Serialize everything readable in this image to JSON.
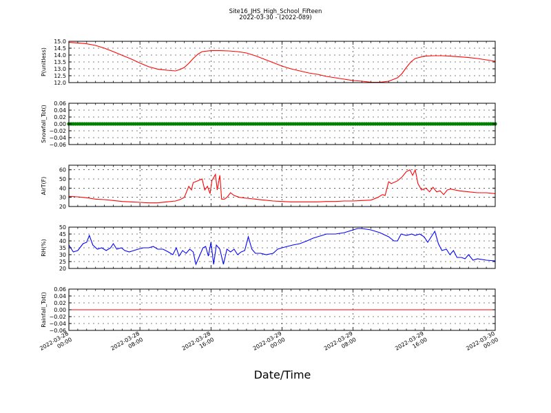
{
  "title": "Site16_JHS_High_School_Fifteen",
  "subtitle": "2022-03-30 - (2022-089)",
  "xlabel": "Date/Time",
  "x_ticks": [
    "2022-03-28\n00:00",
    "2022-03-28\n08:00",
    "2022-03-28\n16:00",
    "2022-03-29\n00:00",
    "2022-03-29\n08:00",
    "2022-03-29\n16:00",
    "2022-03-30\n00:00"
  ],
  "chart_data": [
    {
      "type": "line",
      "ylabel": "P(unitless)",
      "ylim": [
        12.0,
        15.0
      ],
      "yticks": [
        "12.0",
        "12.5",
        "13.0",
        "13.5",
        "14.0",
        "14.5",
        "15.0"
      ],
      "ytick_values": [
        12.0,
        12.5,
        13.0,
        13.5,
        14.0,
        14.5,
        15.0
      ],
      "xlim_hours": [
        0,
        48
      ],
      "grid": true,
      "series": [
        {
          "color": "#ff0000",
          "points": [
            [
              0,
              14.92
            ],
            [
              1,
              14.88
            ],
            [
              2,
              14.82
            ],
            [
              3,
              14.7
            ],
            [
              4,
              14.5
            ],
            [
              5,
              14.25
            ],
            [
              6,
              13.98
            ],
            [
              7,
              13.72
            ],
            [
              8,
              13.42
            ],
            [
              9,
              13.15
            ],
            [
              10,
              12.98
            ],
            [
              11,
              12.9
            ],
            [
              12,
              12.85
            ],
            [
              12.5,
              12.95
            ],
            [
              13,
              13.1
            ],
            [
              13.5,
              13.4
            ],
            [
              14,
              13.75
            ],
            [
              14.5,
              14.05
            ],
            [
              15,
              14.25
            ],
            [
              16,
              14.32
            ],
            [
              17,
              14.32
            ],
            [
              18,
              14.3
            ],
            [
              19,
              14.25
            ],
            [
              20,
              14.15
            ],
            [
              21,
              13.95
            ],
            [
              22,
              13.7
            ],
            [
              23,
              13.45
            ],
            [
              24,
              13.2
            ],
            [
              25,
              13.0
            ],
            [
              26,
              12.85
            ],
            [
              27,
              12.7
            ],
            [
              28,
              12.6
            ],
            [
              29,
              12.45
            ],
            [
              30,
              12.35
            ],
            [
              31,
              12.25
            ],
            [
              32,
              12.15
            ],
            [
              33,
              12.1
            ],
            [
              34,
              12.03
            ],
            [
              35,
              12.02
            ],
            [
              36,
              12.1
            ],
            [
              37,
              12.35
            ],
            [
              37.5,
              12.65
            ],
            [
              38,
              13.1
            ],
            [
              38.5,
              13.5
            ],
            [
              39,
              13.75
            ],
            [
              40,
              13.92
            ],
            [
              41,
              13.95
            ],
            [
              42,
              13.95
            ],
            [
              43,
              13.92
            ],
            [
              44,
              13.87
            ],
            [
              45,
              13.82
            ],
            [
              46,
              13.75
            ],
            [
              47,
              13.65
            ],
            [
              48,
              13.55
            ]
          ]
        }
      ]
    },
    {
      "type": "scatter",
      "ylabel": "Snowfall_Tot()",
      "ylim": [
        -0.06,
        0.06
      ],
      "yticks": [
        "−0.06",
        "−0.04",
        "−0.02",
        "0.00",
        "0.02",
        "0.04",
        "0.06"
      ],
      "ytick_values": [
        -0.06,
        -0.04,
        -0.02,
        0.0,
        0.02,
        0.04,
        0.06
      ],
      "xlim_hours": [
        0,
        48
      ],
      "grid": true,
      "series": [
        {
          "color": "#008000",
          "marker": "dot",
          "constant": 0.0,
          "x_range": [
            0,
            48
          ]
        }
      ]
    },
    {
      "type": "line",
      "ylabel": "AirT(F)",
      "ylim": [
        20,
        65
      ],
      "yticks": [
        "20",
        "30",
        "40",
        "50",
        "60"
      ],
      "ytick_values": [
        20,
        30,
        40,
        50,
        60
      ],
      "xlim_hours": [
        0,
        48
      ],
      "grid": true,
      "series": [
        {
          "color": "#ff0000",
          "points": [
            [
              0,
              31
            ],
            [
              1,
              30.5
            ],
            [
              2,
              29.5
            ],
            [
              3,
              28
            ],
            [
              4,
              27.5
            ],
            [
              5,
              26.5
            ],
            [
              6,
              25.5
            ],
            [
              7,
              25
            ],
            [
              8,
              24.5
            ],
            [
              9,
              24
            ],
            [
              10,
              24
            ],
            [
              11,
              25
            ],
            [
              12,
              26
            ],
            [
              12.5,
              27.5
            ],
            [
              13,
              30
            ],
            [
              13.5,
              42
            ],
            [
              13.8,
              38
            ],
            [
              14,
              46
            ],
            [
              14.5,
              48
            ],
            [
              15,
              50
            ],
            [
              15.3,
              38
            ],
            [
              15.6,
              42
            ],
            [
              15.9,
              34
            ],
            [
              16.1,
              48
            ],
            [
              16.5,
              55
            ],
            [
              16.7,
              38
            ],
            [
              17,
              54
            ],
            [
              17.2,
              28
            ],
            [
              17.5,
              28
            ],
            [
              17.8,
              30
            ],
            [
              18.2,
              35
            ],
            [
              18.6,
              32
            ],
            [
              19.2,
              30
            ],
            [
              20,
              29
            ],
            [
              21,
              28
            ],
            [
              22,
              27
            ],
            [
              23,
              26
            ],
            [
              24,
              25.5
            ],
            [
              25,
              25
            ],
            [
              26,
              25
            ],
            [
              27,
              25
            ],
            [
              28,
              25
            ],
            [
              29,
              25.5
            ],
            [
              30,
              25.5
            ],
            [
              31,
              26
            ],
            [
              32,
              26
            ],
            [
              33,
              26.5
            ],
            [
              34,
              27
            ],
            [
              34.8,
              30
            ],
            [
              35.3,
              33
            ],
            [
              35.6,
              32
            ],
            [
              36,
              47
            ],
            [
              36.3,
              45
            ],
            [
              37,
              48
            ],
            [
              37.5,
              52
            ],
            [
              38,
              58
            ],
            [
              38.4,
              60
            ],
            [
              38.7,
              54
            ],
            [
              39,
              60
            ],
            [
              39.3,
              45
            ],
            [
              39.7,
              38
            ],
            [
              40.2,
              40
            ],
            [
              40.6,
              36
            ],
            [
              41,
              41
            ],
            [
              41.4,
              36
            ],
            [
              41.8,
              37
            ],
            [
              42.2,
              33
            ],
            [
              42.6,
              38
            ],
            [
              43,
              39
            ],
            [
              44,
              37
            ],
            [
              45,
              36
            ],
            [
              46,
              35
            ],
            [
              47,
              35
            ],
            [
              48,
              34
            ]
          ]
        }
      ]
    },
    {
      "type": "line",
      "ylabel": "RH(%)",
      "ylim": [
        20,
        50
      ],
      "yticks": [
        "20",
        "25",
        "30",
        "35",
        "40",
        "45",
        "50"
      ],
      "ytick_values": [
        20,
        25,
        30,
        35,
        40,
        45,
        50
      ],
      "xlim_hours": [
        0,
        48
      ],
      "grid": true,
      "series": [
        {
          "color": "#0000ff",
          "points": [
            [
              0,
              37
            ],
            [
              0.5,
              32
            ],
            [
              1,
              33
            ],
            [
              1.6,
              38
            ],
            [
              2,
              39
            ],
            [
              2.3,
              44
            ],
            [
              2.7,
              37
            ],
            [
              3.2,
              34
            ],
            [
              3.7,
              35
            ],
            [
              4.2,
              33
            ],
            [
              4.7,
              35
            ],
            [
              5,
              38
            ],
            [
              5.4,
              34
            ],
            [
              5.9,
              35
            ],
            [
              6.3,
              33
            ],
            [
              6.8,
              32
            ],
            [
              7.3,
              33
            ],
            [
              7.8,
              34
            ],
            [
              8.4,
              35
            ],
            [
              9,
              35
            ],
            [
              9.5,
              36
            ],
            [
              10,
              34
            ],
            [
              10.6,
              34
            ],
            [
              11.2,
              32
            ],
            [
              11.7,
              30
            ],
            [
              12.1,
              35
            ],
            [
              12.4,
              29
            ],
            [
              12.8,
              33
            ],
            [
              13.2,
              31
            ],
            [
              13.6,
              34
            ],
            [
              14,
              32
            ],
            [
              14.3,
              23
            ],
            [
              14.7,
              29
            ],
            [
              15.1,
              35
            ],
            [
              15.4,
              36
            ],
            [
              15.7,
              29
            ],
            [
              16,
              39
            ],
            [
              16.3,
              23
            ],
            [
              16.6,
              37
            ],
            [
              17,
              34
            ],
            [
              17.4,
              23
            ],
            [
              17.8,
              34
            ],
            [
              18.2,
              32
            ],
            [
              18.6,
              34
            ],
            [
              19,
              30
            ],
            [
              19.4,
              32
            ],
            [
              19.8,
              33
            ],
            [
              20.2,
              43
            ],
            [
              20.6,
              34
            ],
            [
              21,
              31
            ],
            [
              21.6,
              31
            ],
            [
              22.2,
              30
            ],
            [
              23,
              31
            ],
            [
              23.5,
              34
            ],
            [
              24,
              35
            ],
            [
              24.6,
              36
            ],
            [
              25.2,
              37
            ],
            [
              26,
              38
            ],
            [
              26.8,
              40
            ],
            [
              27.5,
              42
            ],
            [
              28,
              43
            ],
            [
              29,
              45
            ],
            [
              30,
              45
            ],
            [
              31,
              46
            ],
            [
              32,
              48
            ],
            [
              32.5,
              49
            ],
            [
              33,
              49
            ],
            [
              34,
              48
            ],
            [
              35,
              46
            ],
            [
              36,
              43
            ],
            [
              36.6,
              40
            ],
            [
              37,
              40
            ],
            [
              37.4,
              45
            ],
            [
              38,
              44
            ],
            [
              38.6,
              45
            ],
            [
              39,
              44
            ],
            [
              39.5,
              45
            ],
            [
              40,
              43
            ],
            [
              40.4,
              39
            ],
            [
              40.8,
              43
            ],
            [
              41.2,
              47
            ],
            [
              41.6,
              38
            ],
            [
              42,
              33
            ],
            [
              42.5,
              34
            ],
            [
              42.9,
              30
            ],
            [
              43.3,
              33
            ],
            [
              43.7,
              28
            ],
            [
              44.2,
              28
            ],
            [
              44.6,
              27
            ],
            [
              45,
              30
            ],
            [
              45.5,
              26
            ],
            [
              46,
              27
            ],
            [
              47,
              26
            ],
            [
              48,
              25.5
            ]
          ]
        }
      ]
    },
    {
      "type": "line",
      "ylabel": "Rainfall_Tot()",
      "ylim": [
        -0.06,
        0.06
      ],
      "yticks": [
        "−0.06",
        "−0.04",
        "−0.02",
        "0.00",
        "0.02",
        "0.04",
        "0.06"
      ],
      "ytick_values": [
        -0.06,
        -0.04,
        -0.02,
        0.0,
        0.02,
        0.04,
        0.06
      ],
      "xlim_hours": [
        0,
        48
      ],
      "grid": true,
      "series": [
        {
          "color": "#ff0000",
          "points": [
            [
              0,
              0
            ],
            [
              48,
              0
            ]
          ]
        }
      ]
    }
  ]
}
